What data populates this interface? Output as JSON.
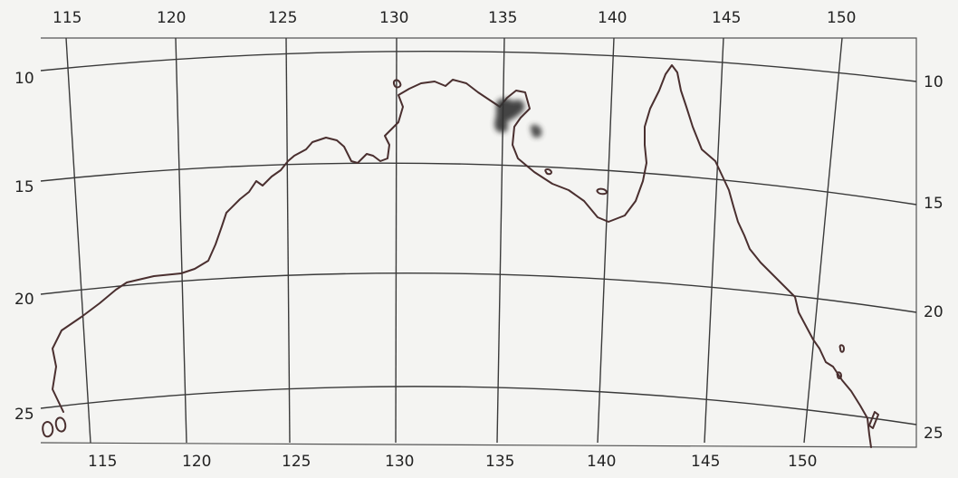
{
  "map": {
    "region": "Northern Australia",
    "colors": {
      "background": "#f4f4f2",
      "grid": "#3a3a3a",
      "coast": "#4a2f2f",
      "highlight": "#333333"
    },
    "longitude_labels_top": [
      "115",
      "120",
      "125",
      "130",
      "135",
      "140",
      "145",
      "150"
    ],
    "longitude_labels_bottom": [
      "115",
      "120",
      "125",
      "130",
      "135",
      "140",
      "145",
      "150"
    ],
    "latitude_labels_left": [
      "10",
      "15",
      "20",
      "25"
    ],
    "latitude_labels_right": [
      "10",
      "15",
      "20",
      "25"
    ],
    "highlighted_area": {
      "description_icon": "shaded-blob",
      "approx_lon": 135,
      "approx_lat": 12
    }
  }
}
